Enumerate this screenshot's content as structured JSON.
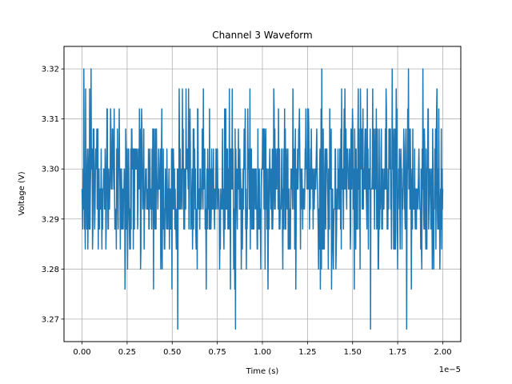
{
  "chart_data": {
    "type": "line",
    "title": "Channel 3 Waveform",
    "xlabel": "Time (s)",
    "ylabel": "Voltage (V)",
    "x_offset_label": "1e−5",
    "xlim": [
      -1e-06,
      2.1e-05
    ],
    "ylim": [
      3.2655,
      3.3245
    ],
    "x_ticks": [
      0,
      2.5e-06,
      5e-06,
      7.5e-06,
      1e-05,
      1.25e-05,
      1.5e-05,
      1.75e-05,
      2e-05
    ],
    "x_tick_labels": [
      "0.00",
      "0.25",
      "0.50",
      "0.75",
      "1.00",
      "1.25",
      "1.50",
      "1.75",
      "2.00"
    ],
    "y_ticks": [
      3.27,
      3.28,
      3.29,
      3.3,
      3.31,
      3.32
    ],
    "y_tick_labels": [
      "3.27",
      "3.28",
      "3.29",
      "3.30",
      "3.31",
      "3.32"
    ],
    "grid": true,
    "series": [
      {
        "color": "#1f77b4",
        "x_start": 0,
        "x_end": 2e-05,
        "samples": 1000,
        "baseline": 3.296,
        "min": 3.268,
        "max": 3.32,
        "quantization_step": 0.004,
        "spikes": [
          {
            "x": 5.3e-06,
            "y": 3.268
          },
          {
            "x": 8.5e-06,
            "y": 3.268
          },
          {
            "x": 1.6e-05,
            "y": 3.268
          },
          {
            "x": 1.8e-05,
            "y": 3.268
          },
          {
            "x": 1e-07,
            "y": 3.32
          },
          {
            "x": 5e-07,
            "y": 3.32
          },
          {
            "x": 1.33e-05,
            "y": 3.32
          },
          {
            "x": 1.72e-05,
            "y": 3.32
          },
          {
            "x": 1.81e-05,
            "y": 3.32
          },
          {
            "x": 1.89e-05,
            "y": 3.32
          }
        ]
      }
    ]
  }
}
